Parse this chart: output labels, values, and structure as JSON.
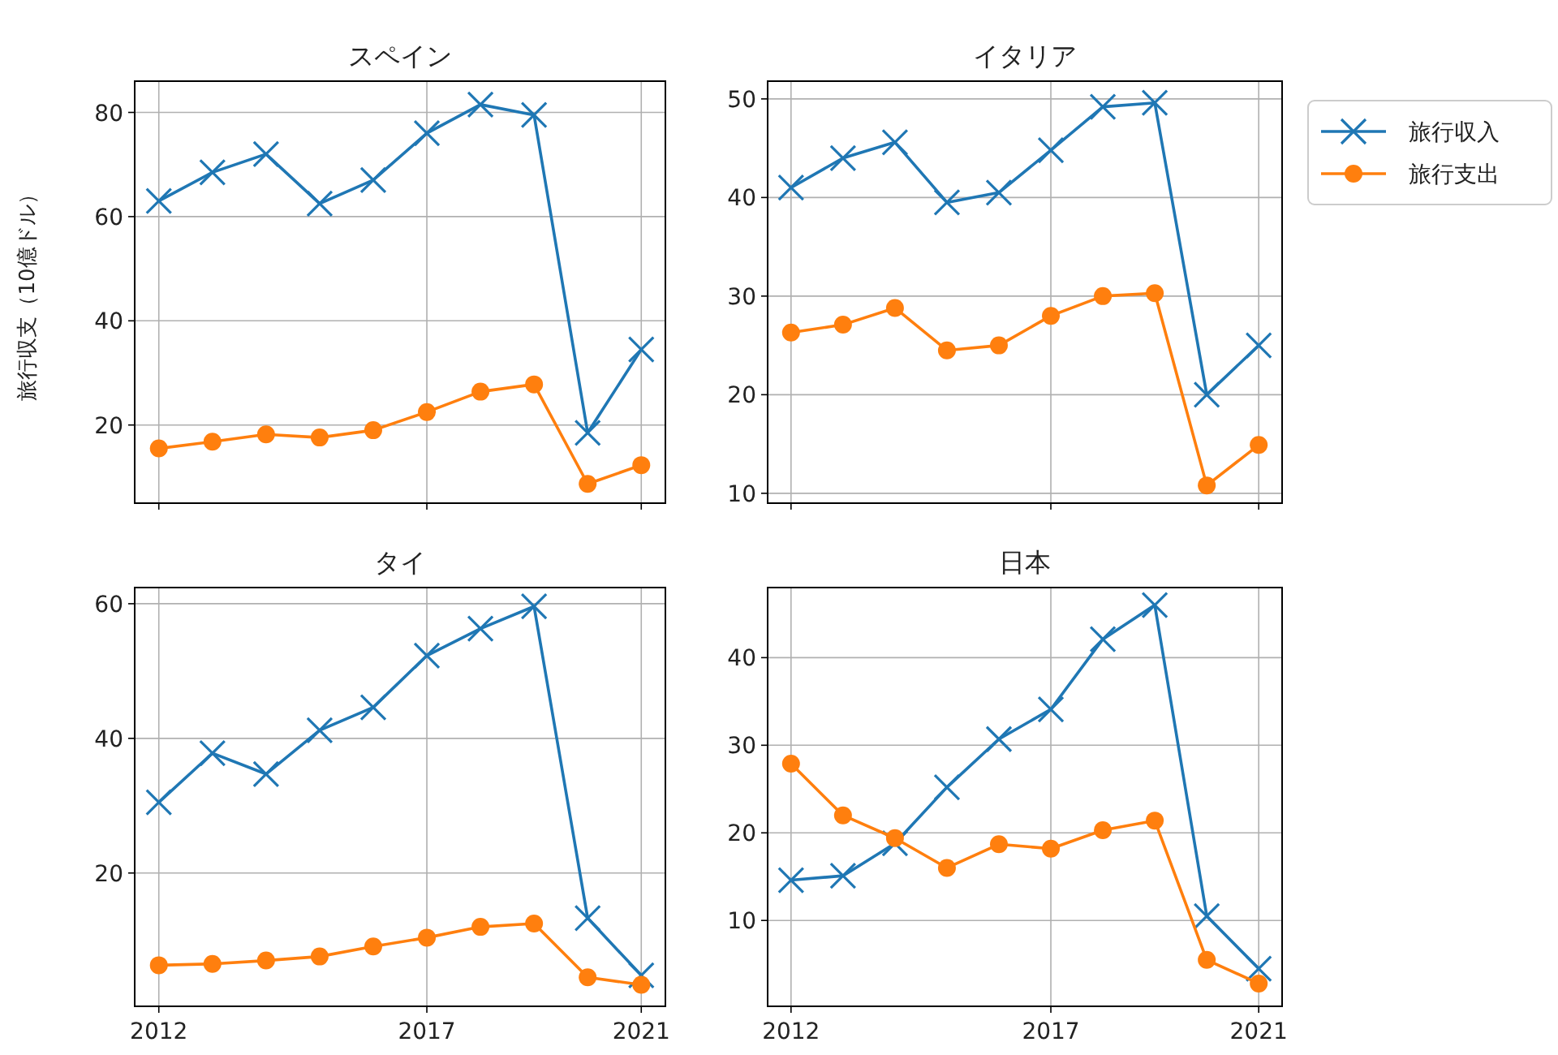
{
  "chart_data": [
    {
      "type": "line",
      "title": "スペイン",
      "ylabel": "旅行収支（10億ドル）",
      "x": [
        2012,
        2013,
        2014,
        2015,
        2016,
        2017,
        2018,
        2019,
        2020,
        2021
      ],
      "xlim": [
        2011.55,
        2021.45
      ],
      "xticks": [
        2012,
        2017,
        2021
      ],
      "ylim": [
        5,
        86
      ],
      "yticks": [
        20,
        40,
        60,
        80
      ],
      "tick_labels": "y",
      "grid": true,
      "series": [
        {
          "color": "#1f77b4",
          "marker": "cross",
          "values": [
            63,
            68.5,
            72,
            62.5,
            67,
            76,
            81.5,
            79.5,
            18.5,
            34.5
          ]
        },
        {
          "color": "#ff7f0e",
          "marker": "circle",
          "values": [
            15.5,
            16.8,
            18.2,
            17.6,
            19,
            22.5,
            26.4,
            27.8,
            8.7,
            12.3
          ]
        }
      ]
    },
    {
      "type": "line",
      "title": "イタリア",
      "x": [
        2012,
        2013,
        2014,
        2015,
        2016,
        2017,
        2018,
        2019,
        2020,
        2021
      ],
      "xlim": [
        2011.55,
        2021.45
      ],
      "xticks": [
        2012,
        2017,
        2021
      ],
      "ylim": [
        9,
        51.8
      ],
      "yticks": [
        10,
        20,
        30,
        40,
        50
      ],
      "tick_labels": "y",
      "grid": true,
      "legend": "right",
      "series": [
        {
          "name": "旅行収入",
          "color": "#1f77b4",
          "marker": "cross",
          "values": [
            41,
            44,
            45.6,
            39.5,
            40.5,
            44.8,
            49.2,
            49.6,
            20,
            25
          ]
        },
        {
          "name": "旅行支出",
          "color": "#ff7f0e",
          "marker": "circle",
          "values": [
            26.3,
            27.1,
            28.8,
            24.5,
            25,
            28,
            30,
            30.3,
            10.8,
            14.9
          ]
        }
      ]
    },
    {
      "type": "line",
      "title": "タイ",
      "x": [
        2012,
        2013,
        2014,
        2015,
        2016,
        2017,
        2018,
        2019,
        2020,
        2021
      ],
      "xlim": [
        2011.55,
        2021.45
      ],
      "xticks": [
        2012,
        2017,
        2021
      ],
      "ylim": [
        0.2,
        62.4
      ],
      "yticks": [
        20,
        40,
        60
      ],
      "grid": true,
      "series": [
        {
          "color": "#1f77b4",
          "marker": "cross",
          "values": [
            30.5,
            37.8,
            34.7,
            41.2,
            44.6,
            52.3,
            56.3,
            59.6,
            13.3,
            4.8
          ]
        },
        {
          "color": "#ff7f0e",
          "marker": "circle",
          "values": [
            6.3,
            6.5,
            7.0,
            7.6,
            9.1,
            10.4,
            12.0,
            12.5,
            4.5,
            3.4
          ]
        }
      ]
    },
    {
      "type": "line",
      "title": "日本",
      "x": [
        2012,
        2013,
        2014,
        2015,
        2016,
        2017,
        2018,
        2019,
        2020,
        2021
      ],
      "xlim": [
        2011.55,
        2021.45
      ],
      "xticks": [
        2012,
        2017,
        2021
      ],
      "ylim": [
        0.2,
        48
      ],
      "yticks": [
        10,
        20,
        30,
        40
      ],
      "grid": true,
      "series": [
        {
          "color": "#1f77b4",
          "marker": "cross",
          "values": [
            14.6,
            15.1,
            18.8,
            25.2,
            30.7,
            34.1,
            42.1,
            46,
            10.5,
            4.5
          ]
        },
        {
          "color": "#ff7f0e",
          "marker": "circle",
          "values": [
            27.9,
            22,
            19.4,
            16,
            18.7,
            18.2,
            20.3,
            21.4,
            5.5,
            2.8
          ]
        }
      ]
    }
  ]
}
